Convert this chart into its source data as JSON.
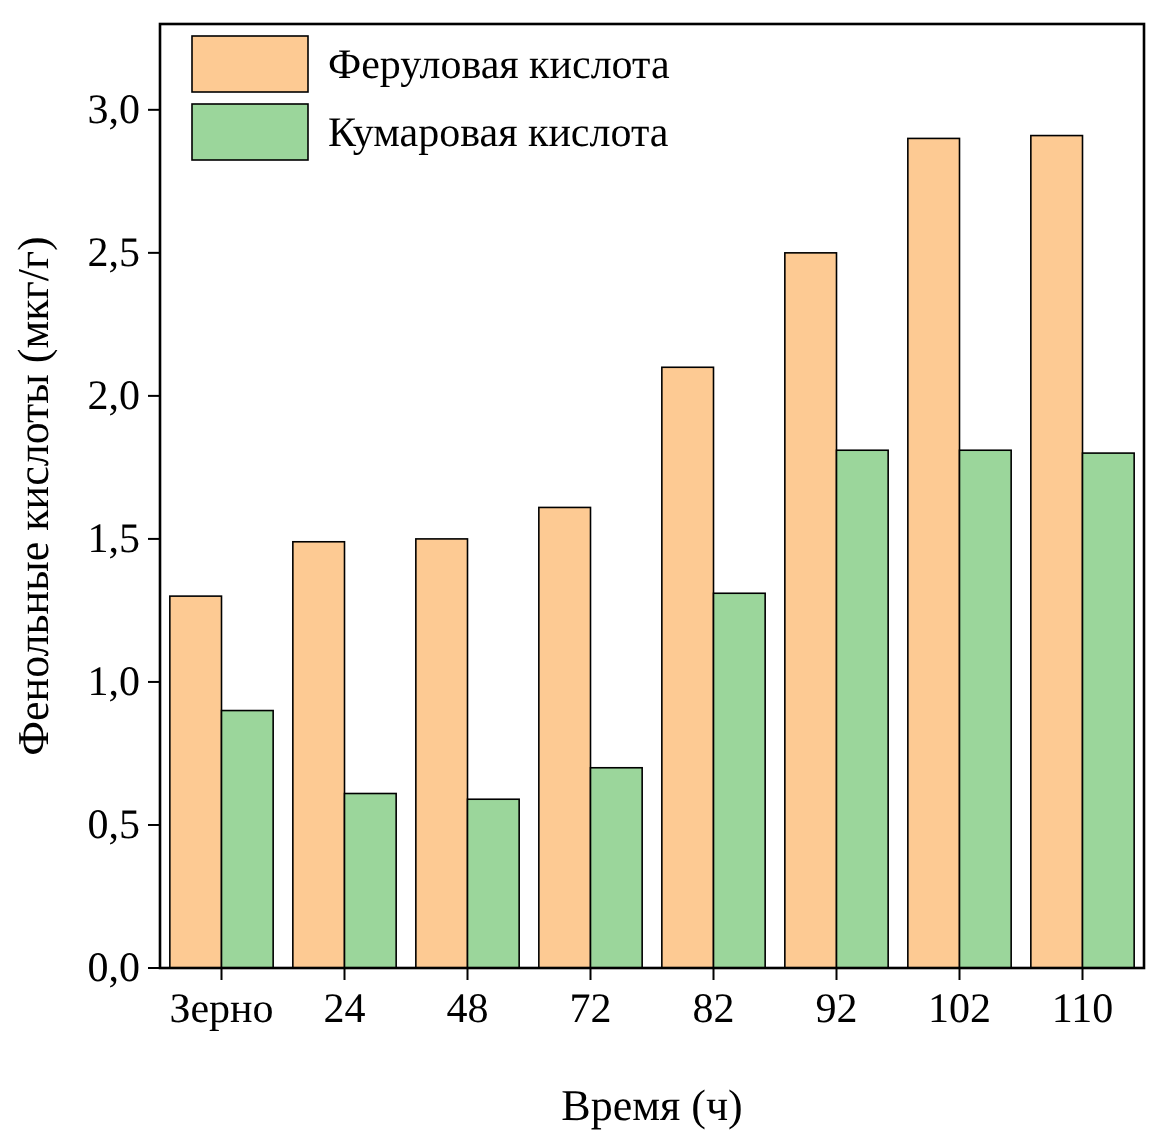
{
  "chart_data": {
    "type": "bar",
    "xlabel": "Время (ч)",
    "ylabel": "Фенольные кислоты (мкг/г)",
    "categories": [
      "Зерно",
      "24",
      "48",
      "72",
      "82",
      "92",
      "102",
      "110"
    ],
    "series": [
      {
        "name": "Феруловая кислота",
        "color": "#fdca93",
        "values": [
          1.3,
          1.49,
          1.5,
          1.61,
          2.1,
          2.5,
          2.9,
          2.91
        ]
      },
      {
        "name": "Кумаровая кислота",
        "color": "#9bd69b",
        "values": [
          0.9,
          0.61,
          0.59,
          0.7,
          1.31,
          1.81,
          1.81,
          1.8
        ]
      }
    ],
    "ylim": [
      0,
      3.3
    ],
    "yticks": [
      {
        "value": 0,
        "label": "0,0"
      },
      {
        "value": 0.5,
        "label": "0,5"
      },
      {
        "value": 1,
        "label": "1,0"
      },
      {
        "value": 1.5,
        "label": "1,5"
      },
      {
        "value": 2,
        "label": "2,0"
      },
      {
        "value": 2.5,
        "label": "2,5"
      },
      {
        "value": 3,
        "label": "3,0"
      }
    ],
    "legend": "top left",
    "grid": false
  }
}
